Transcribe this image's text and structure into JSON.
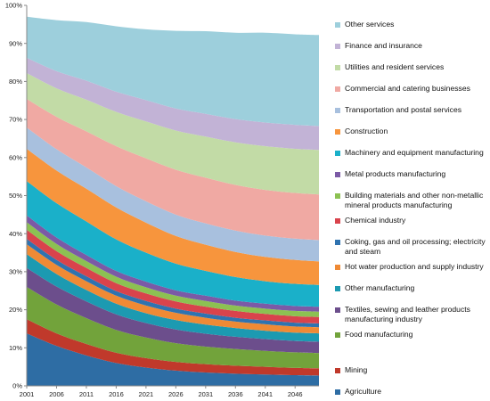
{
  "chart_data": {
    "type": "area",
    "stacked": true,
    "normalized": true,
    "x": [
      2001,
      2006,
      2011,
      2016,
      2021,
      2026,
      2031,
      2036,
      2041,
      2046,
      2050
    ],
    "x_tick_labels": [
      "2001",
      "2006",
      "2011",
      "2016",
      "2021",
      "2026",
      "2031",
      "2036",
      "2041",
      "2046"
    ],
    "ylim": [
      0,
      100
    ],
    "y_tick_labels": [
      "0%",
      "10%",
      "20%",
      "30%",
      "40%",
      "50%",
      "60%",
      "70%",
      "80%",
      "90%",
      "100%"
    ],
    "grid": false,
    "legend_position": "right",
    "series": [
      {
        "name": "Agriculture",
        "color": "#2e6da4",
        "values": [
          13.8,
          10.5,
          8.0,
          6.0,
          4.8,
          4.0,
          3.5,
          3.2,
          3.0,
          2.8,
          2.7
        ]
      },
      {
        "name": "Mining",
        "color": "#c0392b",
        "values": [
          3.7,
          3.3,
          3.0,
          2.7,
          2.5,
          2.3,
          2.2,
          2.1,
          2.0,
          1.9,
          1.9
        ]
      },
      {
        "name": "Food manufacturing",
        "color": "#72a33b",
        "values": [
          8.5,
          7.6,
          6.8,
          6.0,
          5.4,
          4.9,
          4.6,
          4.4,
          4.2,
          4.1,
          4.0
        ]
      },
      {
        "name": "Textiles, sewing and leather products manufacturing industry",
        "color": "#6c4e8c",
        "values": [
          5.0,
          4.7,
          4.4,
          4.1,
          3.8,
          3.6,
          3.4,
          3.2,
          3.1,
          3.0,
          3.0
        ]
      },
      {
        "name": "Other manufacturing",
        "color": "#1c9ab1",
        "values": [
          3.6,
          3.3,
          3.0,
          2.8,
          2.6,
          2.5,
          2.4,
          2.3,
          2.2,
          2.2,
          2.2
        ]
      },
      {
        "name": "Hot water production and supply industry",
        "color": "#ef8a35",
        "values": [
          2.6,
          2.4,
          2.3,
          2.1,
          2.0,
          1.9,
          1.8,
          1.7,
          1.7,
          1.6,
          1.6
        ]
      },
      {
        "name": "Coking, gas and oil processing; electricity and steam",
        "color": "#2f73b0",
        "values": [
          1.4,
          1.3,
          1.3,
          1.2,
          1.2,
          1.1,
          1.1,
          1.0,
          1.0,
          1.0,
          1.0
        ]
      },
      {
        "name": "Chemical industry",
        "color": "#d9434c",
        "values": [
          2.4,
          2.3,
          2.2,
          2.1,
          2.0,
          1.9,
          1.8,
          1.8,
          1.7,
          1.7,
          1.7
        ]
      },
      {
        "name": "Building materials and other non-metallic mineral products manufacturing",
        "color": "#8cc152",
        "values": [
          2.0,
          1.9,
          1.8,
          1.7,
          1.6,
          1.5,
          1.5,
          1.4,
          1.4,
          1.4,
          1.4
        ]
      },
      {
        "name": "Metal products manufacturing",
        "color": "#7b5aa6",
        "values": [
          1.8,
          1.7,
          1.6,
          1.5,
          1.5,
          1.4,
          1.4,
          1.3,
          1.3,
          1.3,
          1.3
        ]
      },
      {
        "name": "Machinery and equipment manufacturing",
        "color": "#1ab0c9",
        "values": [
          9.0,
          9.0,
          8.8,
          8.3,
          7.6,
          7.0,
          6.5,
          6.2,
          5.9,
          5.8,
          5.7
        ]
      },
      {
        "name": "Construction",
        "color": "#f7953d",
        "values": [
          8.5,
          8.6,
          8.6,
          8.4,
          7.9,
          7.3,
          6.9,
          6.6,
          6.4,
          6.3,
          6.2
        ]
      },
      {
        "name": "Transportation and postal services",
        "color": "#a8c0de",
        "values": [
          5.6,
          5.6,
          5.6,
          5.6,
          5.6,
          5.6,
          5.6,
          5.6,
          5.6,
          5.6,
          5.6
        ]
      },
      {
        "name": "Commercial and catering businesses",
        "color": "#f0a9a3",
        "values": [
          7.5,
          8.5,
          9.5,
          10.5,
          11.3,
          11.8,
          12.0,
          12.0,
          12.0,
          12.0,
          12.0
        ]
      },
      {
        "name": "Utilities and resident services",
        "color": "#c2dba6",
        "values": [
          6.8,
          7.5,
          8.3,
          9.0,
          9.7,
          10.3,
          10.8,
          11.2,
          11.5,
          11.6,
          11.7
        ]
      },
      {
        "name": "Finance and insurance",
        "color": "#c2b3d6",
        "values": [
          4.0,
          4.5,
          5.0,
          5.3,
          5.6,
          5.8,
          6.0,
          6.1,
          6.2,
          6.3,
          6.3
        ]
      },
      {
        "name": "Other services",
        "color": "#9dcfdc",
        "values": [
          10.8,
          13.4,
          15.4,
          17.2,
          18.6,
          20.4,
          21.7,
          22.7,
          23.6,
          23.8,
          23.9
        ]
      }
    ]
  }
}
